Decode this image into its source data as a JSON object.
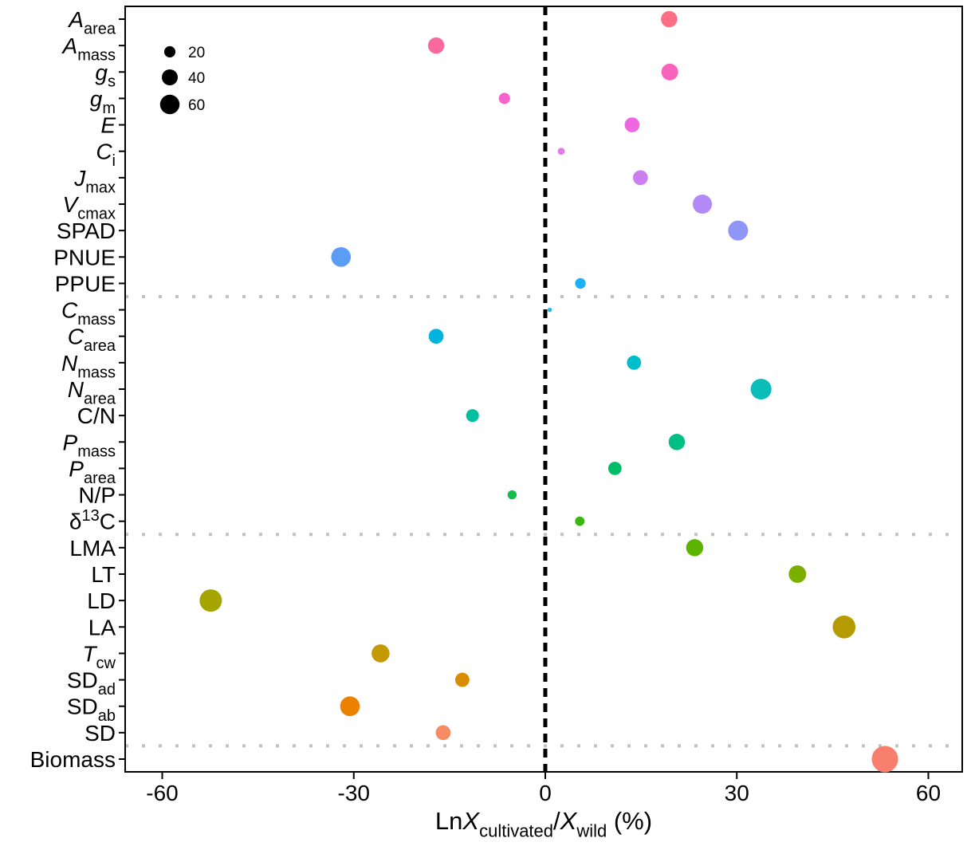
{
  "figure": {
    "background": "#FFFFFF",
    "border_color": "#000000",
    "zero_line_color": "#000000",
    "separator_color": "#C2C2C2"
  },
  "chart_data": {
    "type": "scatter",
    "title": "",
    "xlabel_text": "LnX_cultivated/X_wild (%)",
    "xlabel_segments": [
      {
        "t": "Ln"
      },
      {
        "t": "X",
        "i": true
      },
      {
        "t": "cultivated",
        "sub": true
      },
      {
        "t": "/"
      },
      {
        "t": "X",
        "i": true
      },
      {
        "t": "wild",
        "sub": true
      },
      {
        "t": " (%)"
      }
    ],
    "x_ticks": [
      {
        "label": "-60",
        "value": -60
      },
      {
        "label": "-30",
        "value": -30
      },
      {
        "label": "0",
        "value": 0
      },
      {
        "label": "30",
        "value": 30
      },
      {
        "label": "60",
        "value": 60
      }
    ],
    "xlim": [
      -66,
      65
    ],
    "zero_line_at": 0,
    "grid": "off",
    "legend_position": "top-left-inside",
    "size_legend": {
      "bubble_color": "#000000",
      "entries": [
        {
          "label": "20",
          "n": 20
        },
        {
          "label": "40",
          "n": 40
        },
        {
          "label": "60",
          "n": 60
        }
      ]
    },
    "group_separators_after": [
      "PPUE",
      "d13C",
      "SD"
    ],
    "points": [
      {
        "key": "A_area",
        "label_text": "A_area",
        "segments": [
          {
            "t": "A",
            "i": true
          },
          {
            "t": "area",
            "sub": true
          }
        ],
        "value": 19.4,
        "n": 42,
        "color": "#FB6F87"
      },
      {
        "key": "A_mass",
        "label_text": "A_mass",
        "segments": [
          {
            "t": "A",
            "i": true
          },
          {
            "t": "mass",
            "sub": true
          }
        ],
        "value": -17.1,
        "n": 42,
        "color": "#FA699E"
      },
      {
        "key": "g_s",
        "label_text": "g_s",
        "segments": [
          {
            "t": "g",
            "i": true
          },
          {
            "t": "s",
            "sub": true
          }
        ],
        "value": 19.5,
        "n": 44,
        "color": "#F863BC"
      },
      {
        "key": "g_m",
        "label_text": "g_m",
        "segments": [
          {
            "t": "g",
            "i": true
          },
          {
            "t": "m",
            "sub": true
          }
        ],
        "value": -6.4,
        "n": 20,
        "color": "#F564CC"
      },
      {
        "key": "E",
        "label_text": "E",
        "segments": [
          {
            "t": "E",
            "i": true
          }
        ],
        "value": 13.6,
        "n": 35,
        "color": "#EF67E0"
      },
      {
        "key": "C_i",
        "label_text": "C_i",
        "segments": [
          {
            "t": "C",
            "i": true
          },
          {
            "t": "i",
            "sub": true
          }
        ],
        "value": 2.5,
        "n": 8,
        "color": "#E57BE8"
      },
      {
        "key": "J_max",
        "label_text": "J_max",
        "segments": [
          {
            "t": "J",
            "i": true
          },
          {
            "t": "max",
            "sub": true
          }
        ],
        "value": 14.9,
        "n": 35,
        "color": "#CB7EF2"
      },
      {
        "key": "V_cmax",
        "label_text": "V_cmax",
        "segments": [
          {
            "t": "V",
            "i": true
          },
          {
            "t": "cmax",
            "sub": true
          }
        ],
        "value": 24.6,
        "n": 58,
        "color": "#B28AF8"
      },
      {
        "key": "SPAD",
        "label_text": "SPAD",
        "segments": [
          {
            "t": "SPAD"
          }
        ],
        "value": 30.2,
        "n": 63,
        "color": "#8F96F8"
      },
      {
        "key": "PNUE",
        "label_text": "PNUE",
        "segments": [
          {
            "t": "PNUE"
          }
        ],
        "value": -32.0,
        "n": 61,
        "color": "#5B9DF5"
      },
      {
        "key": "PPUE",
        "label_text": "PPUE",
        "segments": [
          {
            "t": "PPUE"
          }
        ],
        "value": 5.5,
        "n": 18,
        "color": "#1CB0F6"
      },
      {
        "key": "C_mass",
        "label_text": "C_mass",
        "segments": [
          {
            "t": "C",
            "i": true
          },
          {
            "t": "mass",
            "sub": true
          }
        ],
        "value": 0.7,
        "n": 3,
        "color": "#27B8E8"
      },
      {
        "key": "C_area",
        "label_text": "C_area",
        "segments": [
          {
            "t": "C",
            "i": true
          },
          {
            "t": "area",
            "sub": true
          }
        ],
        "value": -17.1,
        "n": 35,
        "color": "#00B4DF"
      },
      {
        "key": "N_mass",
        "label_text": "N_mass",
        "segments": [
          {
            "t": "N",
            "i": true
          },
          {
            "t": "mass",
            "sub": true
          }
        ],
        "value": 13.9,
        "n": 32,
        "color": "#00BDCB"
      },
      {
        "key": "N_area",
        "label_text": "N_area",
        "segments": [
          {
            "t": "N",
            "i": true
          },
          {
            "t": "area",
            "sub": true
          }
        ],
        "value": 33.8,
        "n": 68,
        "color": "#0ABDB8"
      },
      {
        "key": "C/N",
        "label_text": "C/N",
        "segments": [
          {
            "t": "C/N"
          }
        ],
        "value": -11.4,
        "n": 26,
        "color": "#00BFA0"
      },
      {
        "key": "P_mass",
        "label_text": "P_mass",
        "segments": [
          {
            "t": "P",
            "i": true
          },
          {
            "t": "mass",
            "sub": true
          }
        ],
        "value": 20.6,
        "n": 42,
        "color": "#00BF85"
      },
      {
        "key": "P_area",
        "label_text": "P_area",
        "segments": [
          {
            "t": "P",
            "i": true
          },
          {
            "t": "area",
            "sub": true
          }
        ],
        "value": 10.9,
        "n": 28,
        "color": "#00BE68"
      },
      {
        "key": "N/P",
        "label_text": "N/P",
        "segments": [
          {
            "t": "N/P"
          }
        ],
        "value": -5.2,
        "n": 13,
        "color": "#15BD4D"
      },
      {
        "key": "d13C",
        "label_text": "δ13C",
        "segments": [
          {
            "t": "δ"
          },
          {
            "t": "13",
            "sup": true
          },
          {
            "t": "C"
          }
        ],
        "value": 5.4,
        "n": 14,
        "color": "#3DB612"
      },
      {
        "key": "LMA",
        "label_text": "LMA",
        "segments": [
          {
            "t": "LMA"
          }
        ],
        "value": 23.4,
        "n": 46,
        "color": "#5CB300"
      },
      {
        "key": "LT",
        "label_text": "LT",
        "segments": [
          {
            "t": "LT"
          }
        ],
        "value": 39.5,
        "n": 48,
        "color": "#7CAE00"
      },
      {
        "key": "LD",
        "label_text": "LD",
        "segments": [
          {
            "t": "LD"
          }
        ],
        "value": -52.4,
        "n": 79,
        "color": "#A5A400"
      },
      {
        "key": "LA",
        "label_text": "LA",
        "segments": [
          {
            "t": "LA"
          }
        ],
        "value": 46.8,
        "n": 82,
        "color": "#B59B00"
      },
      {
        "key": "T_cw",
        "label_text": "T_cw",
        "segments": [
          {
            "t": "T",
            "i": true
          },
          {
            "t": "cw",
            "sub": true
          }
        ],
        "value": -25.8,
        "n": 51,
        "color": "#C49A00"
      },
      {
        "key": "SD_ad",
        "label_text": "SD_ad",
        "segments": [
          {
            "t": "SD"
          },
          {
            "t": "ad",
            "sub": true
          }
        ],
        "value": -13.0,
        "n": 32,
        "color": "#D98C00"
      },
      {
        "key": "SD_ab",
        "label_text": "SD_ab",
        "segments": [
          {
            "t": "SD"
          },
          {
            "t": "ab",
            "sub": true
          }
        ],
        "value": -30.6,
        "n": 61,
        "color": "#EC8100"
      },
      {
        "key": "SD",
        "label_text": "SD",
        "segments": [
          {
            "t": "SD"
          }
        ],
        "value": -16.0,
        "n": 35,
        "color": "#F68D62"
      },
      {
        "key": "Biomass",
        "label_text": "Biomass",
        "segments": [
          {
            "t": "Biomass"
          }
        ],
        "value": 53.2,
        "n": 110,
        "color": "#F87E6D"
      }
    ]
  }
}
